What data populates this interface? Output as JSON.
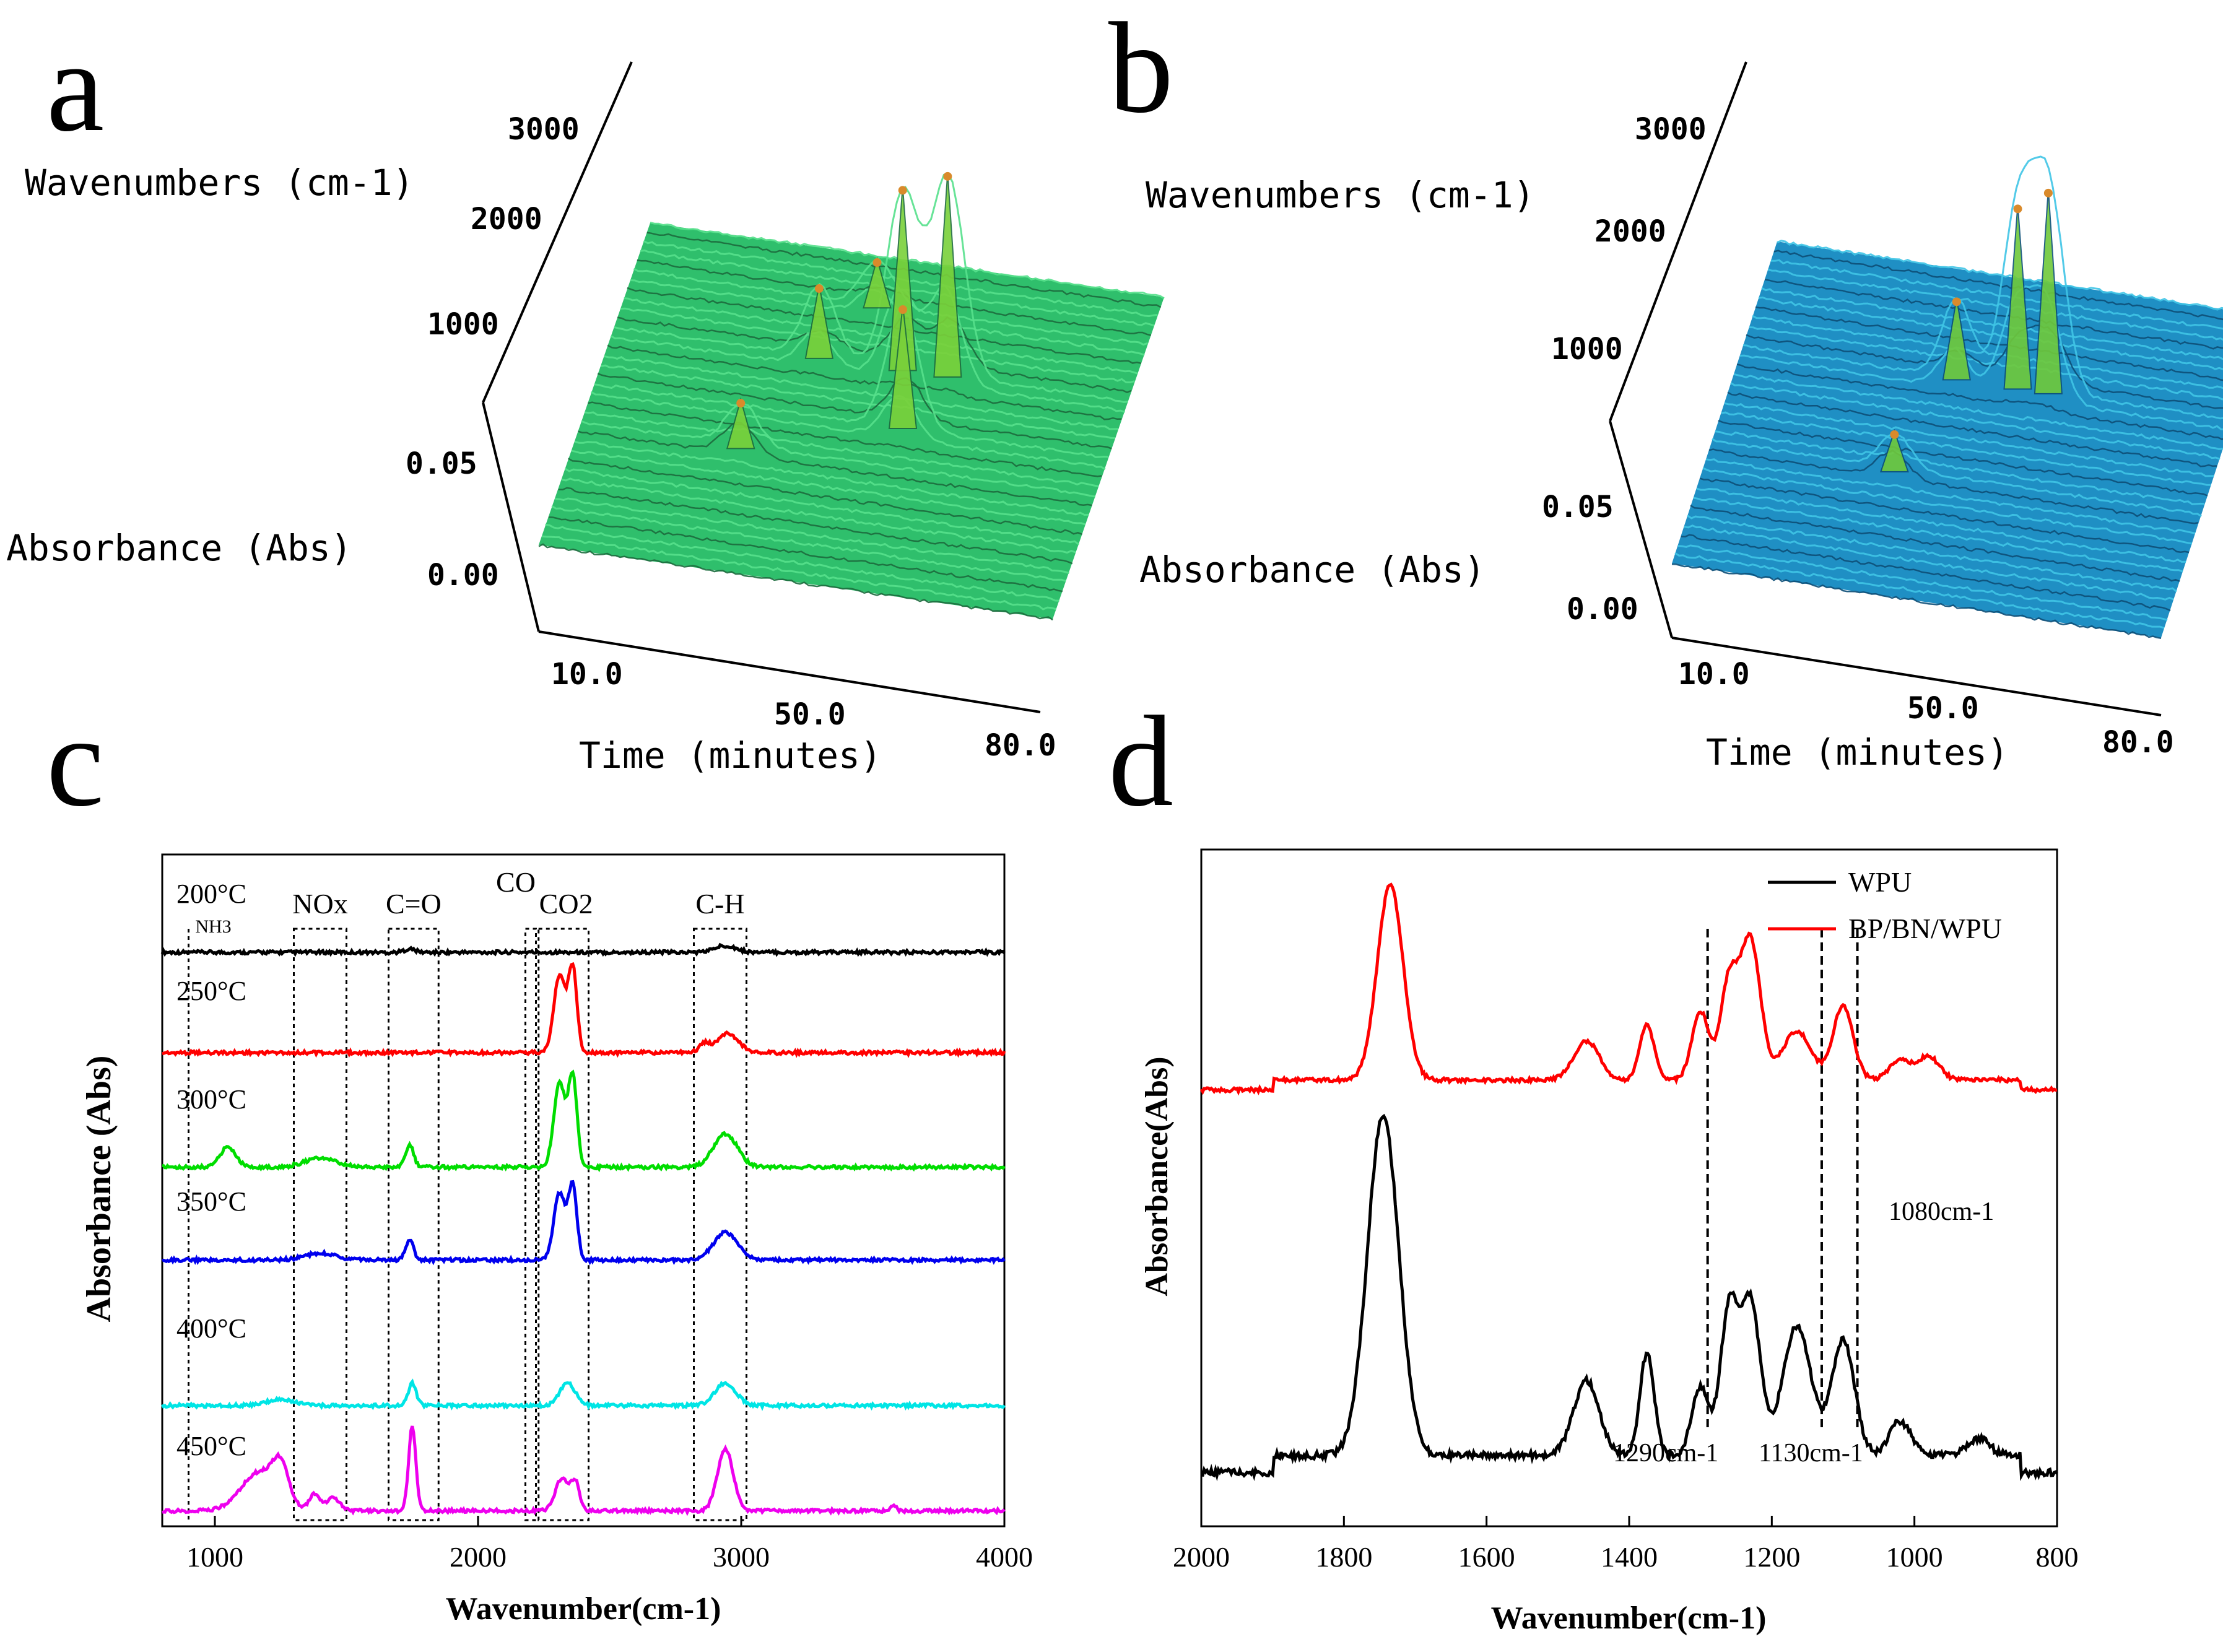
{
  "panel_letters": {
    "a": "a",
    "b": "b",
    "c": "c",
    "d": "d"
  },
  "colors": {
    "wpu": "#000000",
    "bp_bn_wpu": "#ff0000",
    "surface_a": "#33cc77",
    "surface_b": "#1f8fc4"
  },
  "chart_data": [
    {
      "id": "a",
      "type": "surface3d",
      "color_theme": "green",
      "wavenumber_label": "Wavenumbers (cm-1)",
      "wavenumber_ticks": [
        "3000",
        "2000",
        "1000"
      ],
      "absorbance_label": "Absorbance (Abs)",
      "absorbance_ticks": [
        "0.05",
        "0.00"
      ],
      "time_label": "Time (minutes)",
      "time_ticks": [
        "10.0",
        "50.0",
        "80.0"
      ],
      "peaks": [
        {
          "time": 25,
          "wavenumber": 1300,
          "abs": 0.012
        },
        {
          "time": 32,
          "wavenumber": 2350,
          "abs": 0.018
        },
        {
          "time": 38,
          "wavenumber": 2960,
          "abs": 0.012
        },
        {
          "time": 45,
          "wavenumber": 2350,
          "abs": 0.045
        },
        {
          "time": 48,
          "wavenumber": 1750,
          "abs": 0.03
        },
        {
          "time": 52,
          "wavenumber": 2350,
          "abs": 0.05
        }
      ]
    },
    {
      "id": "b",
      "type": "surface3d",
      "color_theme": "blue",
      "wavenumber_label": "Wavenumbers (cm-1)",
      "wavenumber_ticks": [
        "3000",
        "2000",
        "1000"
      ],
      "absorbance_label": "Absorbance (Abs)",
      "absorbance_ticks": [
        "0.05",
        "0.00"
      ],
      "time_label": "Time (minutes)",
      "time_ticks": [
        "10.0",
        "50.0",
        "80.0"
      ],
      "peaks": [
        {
          "time": 30,
          "wavenumber": 1300,
          "abs": 0.01
        },
        {
          "time": 35,
          "wavenumber": 2350,
          "abs": 0.02
        },
        {
          "time": 45,
          "wavenumber": 2350,
          "abs": 0.045
        },
        {
          "time": 50,
          "wavenumber": 2350,
          "abs": 0.05
        }
      ]
    },
    {
      "id": "c",
      "type": "line",
      "ylabel": "Absorbance (Abs)",
      "xlabel": "Wavenumber(cm-1)",
      "xlim": [
        800,
        4000
      ],
      "x_ticks": [
        "1000",
        "2000",
        "3000",
        "4000"
      ],
      "regions": [
        {
          "label": "NH3",
          "x1": 900,
          "x2": 900
        },
        {
          "label": "NOx",
          "x1": 1300,
          "x2": 1500
        },
        {
          "label": "C=O",
          "x1": 1660,
          "x2": 1850
        },
        {
          "label": "CO",
          "x1": 2180,
          "x2": 2220
        },
        {
          "label": "CO2",
          "x1": 2230,
          "x2": 2420
        },
        {
          "label": "C-H",
          "x1": 2820,
          "x2": 3020
        }
      ],
      "series": [
        {
          "name": "200°C",
          "color": "#000000",
          "offset": 0.0,
          "peaks": [
            {
              "x": 2940,
              "h": 0.06,
              "w": 40
            },
            {
              "x": 1740,
              "h": 0.03,
              "w": 20
            }
          ]
        },
        {
          "name": "250°C",
          "color": "#ff0000",
          "offset": 0.0,
          "peaks": [
            {
              "x": 2310,
              "h": 0.7,
              "w": 22
            },
            {
              "x": 2360,
              "h": 0.75,
              "w": 16
            },
            {
              "x": 2950,
              "h": 0.17,
              "w": 40
            },
            {
              "x": 2860,
              "h": 0.08,
              "w": 20
            }
          ]
        },
        {
          "name": "300°C",
          "color": "#00dd00",
          "offset": 0.0,
          "peaks": [
            {
              "x": 2310,
              "h": 0.75,
              "w": 22
            },
            {
              "x": 2360,
              "h": 0.8,
              "w": 16
            },
            {
              "x": 2940,
              "h": 0.3,
              "w": 45
            },
            {
              "x": 1740,
              "h": 0.2,
              "w": 15
            },
            {
              "x": 1050,
              "h": 0.18,
              "w": 30
            },
            {
              "x": 1400,
              "h": 0.08,
              "w": 60
            }
          ]
        },
        {
          "name": "350°C",
          "color": "#0000ee",
          "offset": 0.0,
          "peaks": [
            {
              "x": 2310,
              "h": 0.6,
              "w": 22
            },
            {
              "x": 2360,
              "h": 0.65,
              "w": 16
            },
            {
              "x": 2940,
              "h": 0.25,
              "w": 45
            },
            {
              "x": 1740,
              "h": 0.18,
              "w": 15
            },
            {
              "x": 1400,
              "h": 0.06,
              "w": 60
            }
          ]
        },
        {
          "name": "400°C",
          "color": "#00e5e5",
          "offset": 0.0,
          "peaks": [
            {
              "x": 2340,
              "h": 0.2,
              "w": 30
            },
            {
              "x": 2940,
              "h": 0.2,
              "w": 40
            },
            {
              "x": 1750,
              "h": 0.2,
              "w": 15
            },
            {
              "x": 1250,
              "h": 0.06,
              "w": 50
            }
          ]
        },
        {
          "name": "450°C",
          "color": "#ee00ee",
          "offset": 0.0,
          "peaks": [
            {
              "x": 1750,
              "h": 0.75,
              "w": 14
            },
            {
              "x": 2320,
              "h": 0.3,
              "w": 25
            },
            {
              "x": 2370,
              "h": 0.25,
              "w": 15
            },
            {
              "x": 2940,
              "h": 0.55,
              "w": 30
            },
            {
              "x": 1170,
              "h": 0.35,
              "w": 70
            },
            {
              "x": 1250,
              "h": 0.3,
              "w": 30
            },
            {
              "x": 1380,
              "h": 0.15,
              "w": 20
            },
            {
              "x": 1450,
              "h": 0.12,
              "w": 25
            },
            {
              "x": 3580,
              "h": 0.06,
              "w": 10
            }
          ]
        }
      ]
    },
    {
      "id": "d",
      "type": "line",
      "ylabel": "Absorbance(Abs)",
      "xlabel": "Wavenumber(cm-1)",
      "xlim": [
        2000,
        800
      ],
      "x_ticks": [
        "2000",
        "1800",
        "1600",
        "1400",
        "1200",
        "1000",
        "800"
      ],
      "legend": [
        "WPU",
        "BP/BN/WPU"
      ],
      "annotations": [
        {
          "text": "1290cm-1",
          "x": 1290
        },
        {
          "text": "1130cm-1",
          "x": 1130
        },
        {
          "text": "1080cm-1",
          "x": 1080
        }
      ],
      "series": [
        {
          "name": "WPU",
          "color": "#000000",
          "peaks": [
            {
              "x": 1745,
              "h": 1.0,
              "w": 22
            },
            {
              "x": 1460,
              "h": 0.22,
              "w": 18
            },
            {
              "x": 1375,
              "h": 0.3,
              "w": 10
            },
            {
              "x": 1300,
              "h": 0.2,
              "w": 12
            },
            {
              "x": 1260,
              "h": 0.42,
              "w": 12
            },
            {
              "x": 1230,
              "h": 0.45,
              "w": 14
            },
            {
              "x": 1165,
              "h": 0.38,
              "w": 20
            },
            {
              "x": 1100,
              "h": 0.34,
              "w": 16
            },
            {
              "x": 1020,
              "h": 0.1,
              "w": 15
            },
            {
              "x": 910,
              "h": 0.05,
              "w": 15
            }
          ]
        },
        {
          "name": "BP/BN/WPU",
          "color": "#ff0000",
          "peaks": [
            {
              "x": 1735,
              "h": 1.0,
              "w": 18
            },
            {
              "x": 1460,
              "h": 0.2,
              "w": 18
            },
            {
              "x": 1375,
              "h": 0.28,
              "w": 10
            },
            {
              "x": 1300,
              "h": 0.35,
              "w": 12
            },
            {
              "x": 1260,
              "h": 0.5,
              "w": 12
            },
            {
              "x": 1230,
              "h": 0.72,
              "w": 14
            },
            {
              "x": 1165,
              "h": 0.25,
              "w": 20
            },
            {
              "x": 1100,
              "h": 0.38,
              "w": 14
            },
            {
              "x": 1020,
              "h": 0.1,
              "w": 15
            },
            {
              "x": 980,
              "h": 0.12,
              "w": 15
            }
          ]
        }
      ]
    }
  ]
}
